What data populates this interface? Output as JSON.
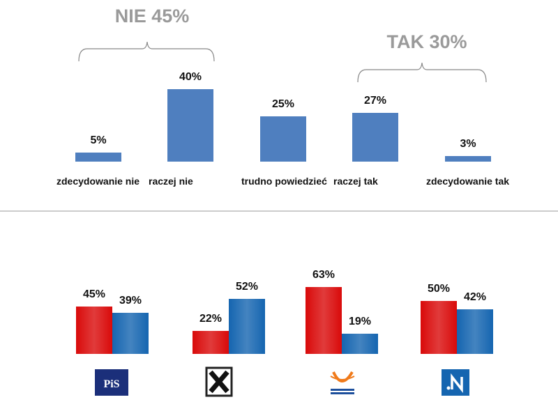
{
  "chart_data": [
    {
      "type": "bar",
      "annotations": [
        "NIE 45%",
        "TAK 30%"
      ],
      "categories": [
        "zdecydowanie nie",
        "raczej nie",
        "trudno powiedzieć",
        "raczej tak",
        "zdecydowanie tak"
      ],
      "values": [
        5,
        40,
        25,
        27,
        3
      ],
      "value_labels": [
        "5%",
        "40%",
        "25%",
        "27%",
        "3%"
      ],
      "color": "#4f7fbf"
    },
    {
      "type": "grouped_bar",
      "categories": [
        null,
        null,
        null,
        null
      ],
      "series": [
        {
          "color": "#d90a0a",
          "values": [
            45,
            22,
            63,
            50
          ],
          "value_labels": [
            "45%",
            "22%",
            "63%",
            "50%"
          ]
        },
        {
          "color": "#1565b0",
          "values": [
            39,
            52,
            19,
            42
          ],
          "value_labels": [
            "39%",
            "52%",
            "19%",
            "42%"
          ]
        }
      ]
    }
  ]
}
